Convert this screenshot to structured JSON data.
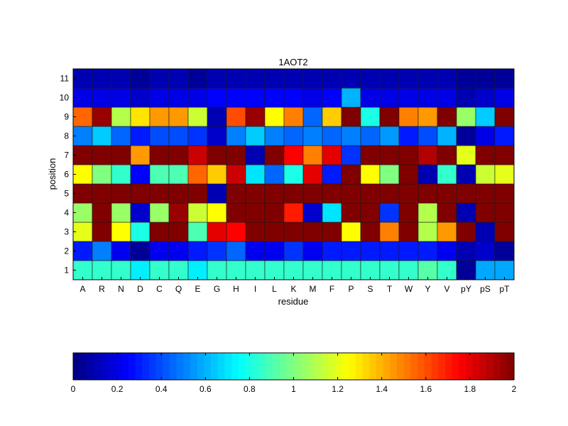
{
  "chart_data": {
    "type": "heatmap",
    "title": "1AOT2",
    "xlabel": "residue",
    "ylabel": "position",
    "colormap": "jet",
    "clim": [
      0,
      2
    ],
    "grid": true,
    "x_categories": [
      "A",
      "R",
      "N",
      "D",
      "C",
      "Q",
      "E",
      "G",
      "H",
      "I",
      "L",
      "K",
      "M",
      "F",
      "P",
      "S",
      "T",
      "W",
      "Y",
      "V",
      "pY",
      "pS",
      "pT"
    ],
    "y_categories": [
      "1",
      "2",
      "3",
      "4",
      "5",
      "6",
      "7",
      "8",
      "9",
      "10",
      "11"
    ],
    "values": [
      [
        0.85,
        0.85,
        0.85,
        0.72,
        0.85,
        0.85,
        0.72,
        0.85,
        0.85,
        0.85,
        0.85,
        0.85,
        0.85,
        0.85,
        0.85,
        0.85,
        0.85,
        0.85,
        0.92,
        0.85,
        0.05,
        0.58,
        0.58
      ],
      [
        0.3,
        0.5,
        0.22,
        0.05,
        0.22,
        0.22,
        0.3,
        0.35,
        0.45,
        0.22,
        0.22,
        0.35,
        0.22,
        0.3,
        0.3,
        0.3,
        0.3,
        0.3,
        0.3,
        0.22,
        0.1,
        0.15,
        0.05
      ],
      [
        1.2,
        2.0,
        1.25,
        0.8,
        2.0,
        2.0,
        0.9,
        1.8,
        1.75,
        2.0,
        2.0,
        2.0,
        2.0,
        2.0,
        1.25,
        2.0,
        1.5,
        2.0,
        1.1,
        1.45,
        2.0,
        0.1,
        2.0
      ],
      [
        1.05,
        2.0,
        1.05,
        0.15,
        1.05,
        1.95,
        1.15,
        1.25,
        2.0,
        2.0,
        2.0,
        1.7,
        0.15,
        0.7,
        2.0,
        2.0,
        0.35,
        2.0,
        1.1,
        2.0,
        0.1,
        2.0,
        2.0
      ],
      [
        2.0,
        2.0,
        2.0,
        2.0,
        2.0,
        2.0,
        2.0,
        0.1,
        2.0,
        2.0,
        2.0,
        2.0,
        2.0,
        2.0,
        2.0,
        2.0,
        2.0,
        2.0,
        2.0,
        2.0,
        2.0,
        2.0,
        2.0
      ],
      [
        1.25,
        1.0,
        0.85,
        0.25,
        0.9,
        0.9,
        1.55,
        1.35,
        1.85,
        0.7,
        0.45,
        0.8,
        1.8,
        0.3,
        2.0,
        1.25,
        1.0,
        2.0,
        0.1,
        0.85,
        0.1,
        1.15,
        1.2
      ],
      [
        2.0,
        2.0,
        2.0,
        1.45,
        2.0,
        2.0,
        1.85,
        2.0,
        2.0,
        0.1,
        2.0,
        1.75,
        1.5,
        1.8,
        0.35,
        2.0,
        2.0,
        2.0,
        1.9,
        2.0,
        1.2,
        2.0,
        2.0
      ],
      [
        0.5,
        0.65,
        0.45,
        0.3,
        0.4,
        0.4,
        0.35,
        0.15,
        0.5,
        0.65,
        0.5,
        0.45,
        0.5,
        0.45,
        0.5,
        0.45,
        0.55,
        0.3,
        0.4,
        0.6,
        0.05,
        0.2,
        0.3
      ],
      [
        1.55,
        1.95,
        1.1,
        1.3,
        1.45,
        1.45,
        1.15,
        0.1,
        1.6,
        1.95,
        1.25,
        1.5,
        0.45,
        1.35,
        2.0,
        0.8,
        2.0,
        1.5,
        1.45,
        2.0,
        1.05,
        0.65,
        2.0
      ],
      [
        0.2,
        0.2,
        0.2,
        0.15,
        0.2,
        0.2,
        0.2,
        0.25,
        0.25,
        0.25,
        0.25,
        0.25,
        0.2,
        0.25,
        0.6,
        0.2,
        0.2,
        0.2,
        0.2,
        0.2,
        0.1,
        0.15,
        0.2
      ],
      [
        0.1,
        0.1,
        0.1,
        0.05,
        0.1,
        0.1,
        0.05,
        0.1,
        0.1,
        0.1,
        0.1,
        0.1,
        0.1,
        0.1,
        0.1,
        0.1,
        0.1,
        0.1,
        0.1,
        0.1,
        0.05,
        0.05,
        0.05
      ]
    ],
    "colorbar": {
      "ticks": [
        0,
        0.2,
        0.4,
        0.6,
        0.8,
        1,
        1.2,
        1.4,
        1.6,
        1.8,
        2
      ],
      "tick_labels": [
        "0",
        "0.2",
        "0.4",
        "0.6",
        "0.8",
        "1",
        "1.2",
        "1.4",
        "1.6",
        "1.8",
        "2"
      ],
      "orientation": "horizontal",
      "steps": 64
    }
  }
}
